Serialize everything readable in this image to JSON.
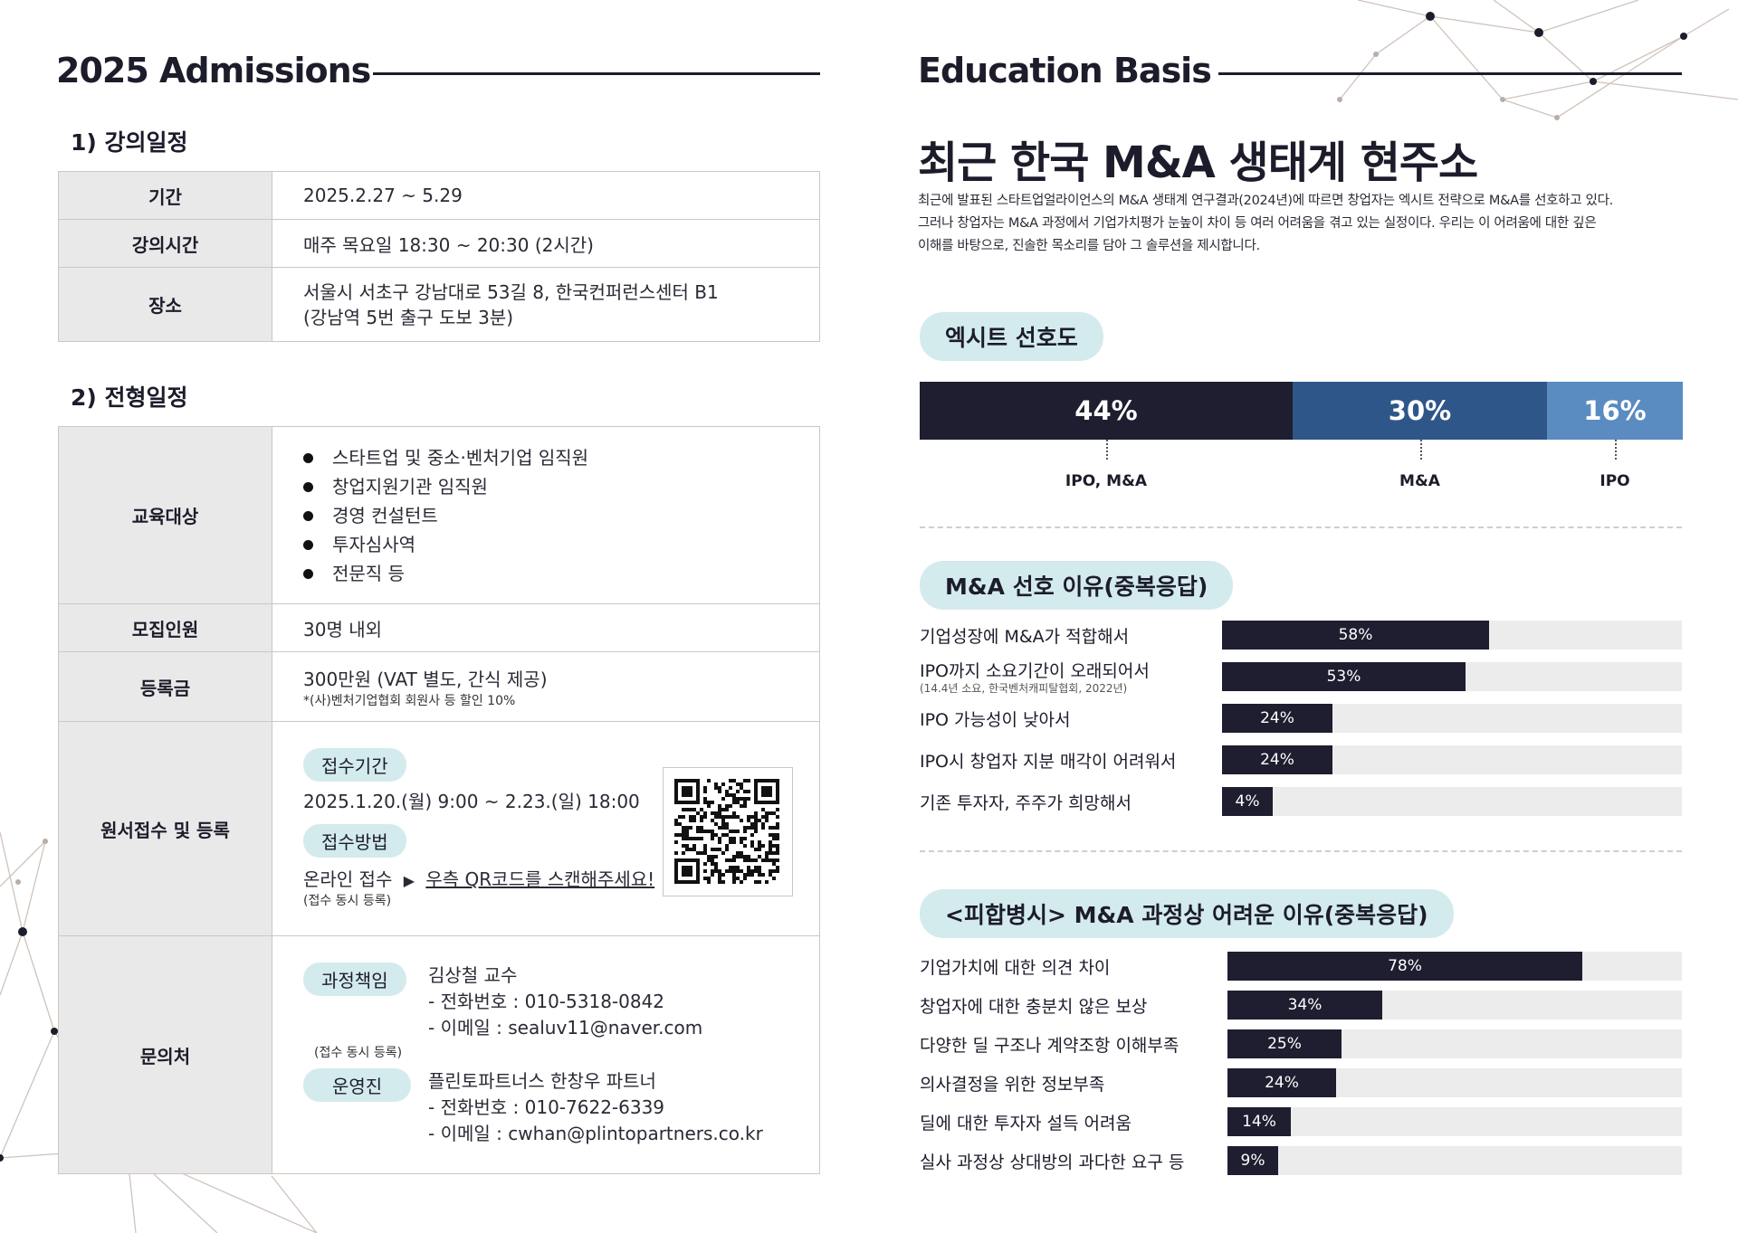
{
  "left": {
    "heading": "2025 Admissions",
    "s1": {
      "title": "1) 강의일정",
      "rows": [
        {
          "key": "기간",
          "value": "2025.2.27 ~ 5.29"
        },
        {
          "key": "강의시간",
          "value": "매주 목요일 18:30 ~ 20:30 (2시간)"
        },
        {
          "key": "장소",
          "value": "서울시 서초구 강남대로 53길 8, 한국컨퍼런스센터 B1",
          "value2": "(강남역 5번 출구 도보 3분)"
        }
      ]
    },
    "s2": {
      "title": "2) 전형일정",
      "target_key": "교육대상",
      "targets": [
        "스타트업 및 중소·벤처기업 임직원",
        "창업지원기관 임직원",
        "경영 컨설턴트",
        "투자심사역",
        "전문직 등"
      ],
      "recruit_key": "모집인원",
      "recruit_value": "30명 내외",
      "fee_key": "등록금",
      "fee_value": "300만원 (VAT 별도, 간식 제공)",
      "fee_note": "*(사)벤처기업협회 회원사 등 할인 10%",
      "apply_key": "원서접수 및 등록",
      "apply_period_label": "접수기간",
      "apply_period": "2025.1.20.(월) 9:00 ~ 2.23.(일) 18:00",
      "apply_method_label": "접수방법",
      "apply_method": "온라인 접수",
      "apply_arrow": "▶",
      "apply_link": "우측 QR코드를 스캔해주세요!",
      "apply_note": "(접수 동시 등록)",
      "contact_key": "문의처",
      "contact1_label": "과정책임",
      "contact1_name": "김상철 교수",
      "contact1_phone": "-   전화번호 : 010-5318-0842",
      "contact1_email": "-   이메일 : sealuv11@naver.com",
      "contact_note": "(접수 동시 등록)",
      "contact2_label": "운영진",
      "contact2_name": "플린토파트너스 한창우 파트너",
      "contact2_phone": "-   전화번호 : 010-7622-6339",
      "contact2_email": "-   이메일 : cwhan@plintopartners.co.kr"
    }
  },
  "right": {
    "heading": "Education Basis",
    "title": "최근 한국 M&A 생태계 현주소",
    "intro": [
      "최근에 발표된 스타트업얼라이언스의 M&A 생태계 연구결과(2024년)에 따르면 창업자는 엑시트 전략으로 M&A를 선호하고 있다.",
      "그러나 창업자는 M&A 과정에서 기업가치평가 눈높이 차이 등 여러 어려움을 겪고 있는 실정이다. 우리는 이 어려움에 대한 깊은",
      "이해를 바탕으로, 진솔한 목소리를 담아 그 솔루션을 제시합니다."
    ],
    "sec1_title": "엑시트 선호도",
    "sec2_title": "M&A 선호 이유(중복응답)",
    "sec2_sub": "(14.4년 소요, 한국벤처캐피탈협회, 2022년)",
    "sec3_title": "<피합병시> M&A 과정상 어려운 이유(중복응답)"
  },
  "colors": {
    "dark": "#1e1e30",
    "mid": "#2f5689",
    "light": "#5a8bc1",
    "pill": "#d4ebee"
  },
  "chart_data": [
    {
      "type": "bar",
      "title": "엑시트 선호도",
      "categories": [
        "IPO, M&A",
        "M&A",
        "IPO"
      ],
      "values": [
        44,
        30,
        16
      ],
      "labels": [
        "44%",
        "30%",
        "16%"
      ]
    },
    {
      "type": "bar",
      "title": "M&A 선호 이유(중복응답)",
      "categories": [
        "기업성장에 M&A가 적합해서",
        "IPO까지 소요기간이 오래되어서",
        "IPO 가능성이 낮아서",
        "IPO시 창업자 지분 매각이 어려워서",
        "기존 투자자, 주주가 희망해서"
      ],
      "values": [
        58,
        53,
        24,
        24,
        4
      ],
      "labels": [
        "58%",
        "53%",
        "24%",
        "24%",
        "4%"
      ]
    },
    {
      "type": "bar",
      "title": "<피합병시> M&A 과정상 어려운 이유(중복응답)",
      "categories": [
        "기업가치에 대한 의견 차이",
        "창업자에 대한 충분치 않은 보상",
        "다양한 딜 구조나 계약조항 이해부족",
        "의사결정을 위한 정보부족",
        "딜에 대한 투자자 설득 어려움",
        "실사 과정상 상대방의 과다한 요구 등"
      ],
      "values": [
        78,
        34,
        25,
        24,
        14,
        9
      ],
      "labels": [
        "78%",
        "34%",
        "25%",
        "24%",
        "14%",
        "9%"
      ]
    }
  ]
}
